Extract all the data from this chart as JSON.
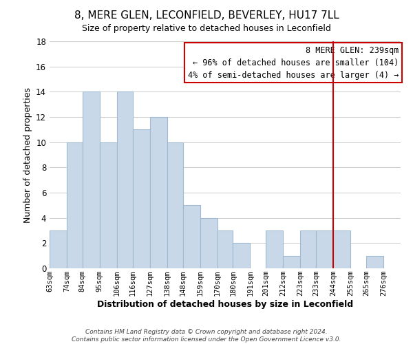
{
  "title": "8, MERE GLEN, LECONFIELD, BEVERLEY, HU17 7LL",
  "subtitle": "Size of property relative to detached houses in Leconfield",
  "xlabel": "Distribution of detached houses by size in Leconfield",
  "ylabel": "Number of detached properties",
  "bin_labels": [
    "63sqm",
    "74sqm",
    "84sqm",
    "95sqm",
    "106sqm",
    "116sqm",
    "127sqm",
    "138sqm",
    "148sqm",
    "159sqm",
    "170sqm",
    "180sqm",
    "191sqm",
    "201sqm",
    "212sqm",
    "223sqm",
    "233sqm",
    "244sqm",
    "255sqm",
    "265sqm",
    "276sqm"
  ],
  "bar_heights": [
    3,
    10,
    14,
    10,
    14,
    11,
    12,
    10,
    5,
    4,
    3,
    2,
    0,
    3,
    1,
    3,
    3,
    3,
    0,
    1,
    0
  ],
  "bar_color": "#c8d8e8",
  "bar_edge_color": "#a0b8d0",
  "grid_color": "#cccccc",
  "vline_color": "#cc0000",
  "annotation_line1": "8 MERE GLEN: 239sqm",
  "annotation_line2": "← 96% of detached houses are smaller (104)",
  "annotation_line3": "4% of semi-detached houses are larger (4) →",
  "annotation_box_color": "#ffffff",
  "annotation_box_edge": "#cc0000",
  "footer_text": "Contains HM Land Registry data © Crown copyright and database right 2024.\nContains public sector information licensed under the Open Government Licence v3.0.",
  "ylim": [
    0,
    18
  ],
  "yticks": [
    0,
    2,
    4,
    6,
    8,
    10,
    12,
    14,
    16,
    18
  ],
  "bin_edges": [
    63,
    74,
    84,
    95,
    106,
    116,
    127,
    138,
    148,
    159,
    170,
    180,
    191,
    201,
    212,
    223,
    233,
    244,
    255,
    265,
    276,
    287
  ],
  "vline_x_bin_index": 17
}
